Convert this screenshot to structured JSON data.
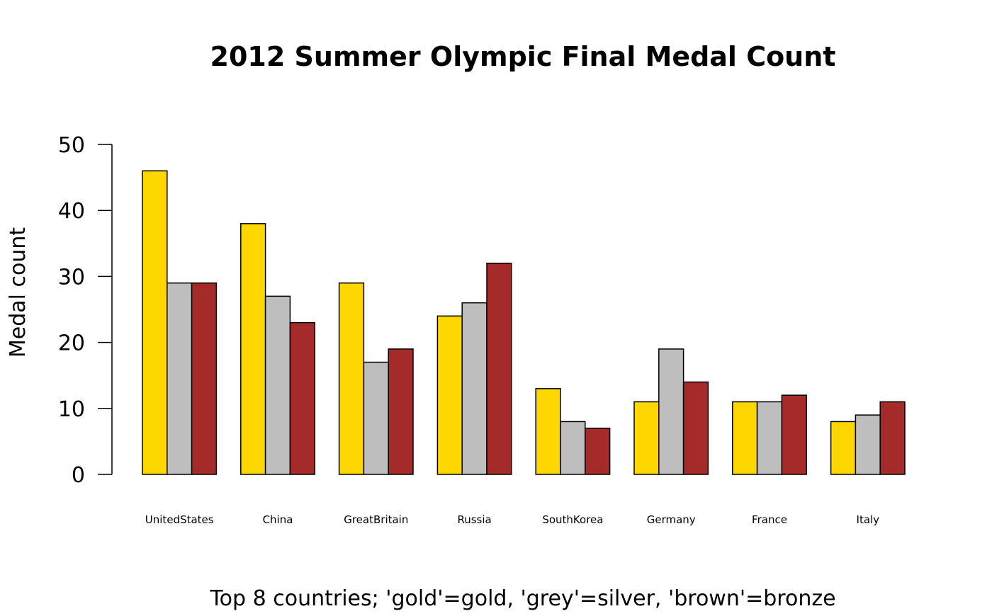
{
  "chart_data": {
    "type": "bar",
    "title": "2012 Summer Olympic Final Medal Count",
    "xlabel": "Top 8 countries; 'gold'=gold, 'grey'=silver, 'brown'=bronze",
    "ylabel": "Medal count",
    "ylim": [
      0,
      50
    ],
    "yticks": [
      "0",
      "10",
      "20",
      "30",
      "40",
      "50"
    ],
    "grid": false,
    "categories": [
      "UnitedStates",
      "China",
      "GreatBritain",
      "Russia",
      "SouthKorea",
      "Germany",
      "France",
      "Italy"
    ],
    "series": [
      {
        "color": "#FFD700",
        "values": [
          46,
          38,
          29,
          24,
          13,
          11,
          11,
          8
        ]
      },
      {
        "color": "#BEBEBE",
        "values": [
          29,
          27,
          17,
          26,
          8,
          19,
          11,
          9
        ]
      },
      {
        "color": "#A52A2A",
        "values": [
          29,
          23,
          19,
          32,
          7,
          14,
          12,
          11
        ]
      }
    ]
  }
}
